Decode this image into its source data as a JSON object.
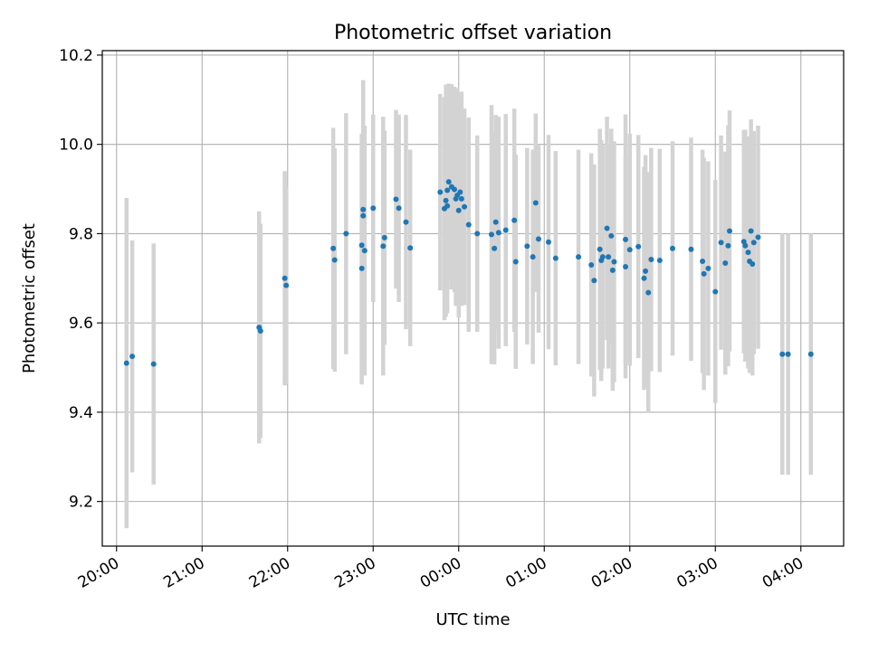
{
  "chart_data": {
    "type": "scatter",
    "title": "Photometric offset variation",
    "xlabel": "UTC time",
    "ylabel": "Photometric offset",
    "xlim": [
      "19:50",
      "04:30"
    ],
    "ylim": [
      9.1,
      10.21
    ],
    "grid": true,
    "x_ticks": [
      "20:00",
      "21:00",
      "22:00",
      "23:00",
      "00:00",
      "01:00",
      "02:00",
      "03:00",
      "04:00"
    ],
    "y_ticks": [
      "9.2",
      "9.4",
      "9.6",
      "9.8",
      "10.0",
      "10.2"
    ],
    "marker_color": "#1f77b4",
    "errorbar_color": "#d3d3d3",
    "series": [
      {
        "x": [
          "20:07",
          "20:11",
          "20:26",
          "21:40",
          "21:41",
          "21:58",
          "21:59",
          "22:32",
          "22:33",
          "22:41",
          "22:52",
          "22:52",
          "22:53",
          "22:53",
          "22:54",
          "23:00",
          "23:07",
          "23:08",
          "23:16",
          "23:18",
          "23:23",
          "23:26",
          "23:47",
          "23:50",
          "23:51",
          "23:52",
          "23:52",
          "23:53",
          "23:55",
          "23:57",
          "23:58",
          "23:59",
          "00:00",
          "00:01",
          "00:02",
          "00:04",
          "00:07",
          "00:13",
          "00:23",
          "00:25",
          "00:26",
          "00:28",
          "00:33",
          "00:39",
          "00:40",
          "00:48",
          "00:52",
          "00:54",
          "00:56",
          "01:03",
          "01:08",
          "01:24",
          "01:33",
          "01:35",
          "01:39",
          "01:40",
          "01:41",
          "01:44",
          "01:45",
          "01:47",
          "01:48",
          "01:49",
          "01:57",
          "01:57",
          "02:00",
          "02:06",
          "02:10",
          "02:11",
          "02:13",
          "02:15",
          "02:21",
          "02:30",
          "02:43",
          "02:51",
          "02:52",
          "02:55",
          "03:00",
          "03:04",
          "03:07",
          "03:09",
          "03:10",
          "03:20",
          "03:21",
          "03:23",
          "03:24",
          "03:25",
          "03:26",
          "03:27",
          "03:30",
          "03:47",
          "03:51",
          "04:07"
        ],
        "y": [
          9.51,
          9.525,
          9.508,
          9.59,
          9.582,
          9.7,
          9.684,
          9.767,
          9.741,
          9.8,
          9.774,
          9.722,
          9.854,
          9.84,
          9.762,
          9.857,
          9.772,
          9.791,
          9.877,
          9.857,
          9.826,
          9.768,
          9.893,
          9.856,
          9.874,
          9.862,
          9.897,
          9.916,
          9.905,
          9.899,
          9.878,
          9.886,
          9.852,
          9.893,
          9.878,
          9.86,
          9.82,
          9.8,
          9.798,
          9.767,
          9.826,
          9.802,
          9.808,
          9.83,
          9.737,
          9.772,
          9.748,
          9.869,
          9.788,
          9.781,
          9.745,
          9.748,
          9.73,
          9.695,
          9.765,
          9.74,
          9.748,
          9.812,
          9.748,
          9.795,
          9.718,
          9.737,
          9.787,
          9.726,
          9.764,
          9.771,
          9.7,
          9.716,
          9.668,
          9.742,
          9.74,
          9.767,
          9.765,
          9.738,
          9.71,
          9.722,
          9.67,
          9.78,
          9.734,
          9.773,
          9.806,
          9.782,
          9.773,
          9.758,
          9.738,
          9.806,
          9.732,
          9.78,
          9.792,
          9.53,
          9.53,
          9.53
        ],
        "err": [
          0.37,
          0.26,
          0.27,
          0.26,
          0.24,
          0.24,
          0.22,
          0.27,
          0.25,
          0.27,
          0.25,
          0.26,
          0.29,
          0.28,
          0.28,
          0.21,
          0.29,
          0.24,
          0.2,
          0.21,
          0.24,
          0.22,
          0.22,
          0.25,
          0.26,
          0.24,
          0.22,
          0.22,
          0.23,
          0.23,
          0.24,
          0.24,
          0.24,
          0.22,
          0.24,
          0.22,
          0.24,
          0.22,
          0.29,
          0.26,
          0.24,
          0.26,
          0.26,
          0.25,
          0.24,
          0.22,
          0.24,
          0.2,
          0.21,
          0.24,
          0.24,
          0.24,
          0.25,
          0.26,
          0.27,
          0.27,
          0.25,
          0.25,
          0.25,
          0.24,
          0.27,
          0.27,
          0.28,
          0.25,
          0.26,
          0.25,
          0.25,
          0.26,
          0.27,
          0.25,
          0.25,
          0.24,
          0.25,
          0.25,
          0.26,
          0.24,
          0.25,
          0.24,
          0.25,
          0.27,
          0.27,
          0.25,
          0.26,
          0.26,
          0.25,
          0.25,
          0.25,
          0.25,
          0.25,
          0.27,
          0.27,
          0.27
        ]
      }
    ]
  }
}
